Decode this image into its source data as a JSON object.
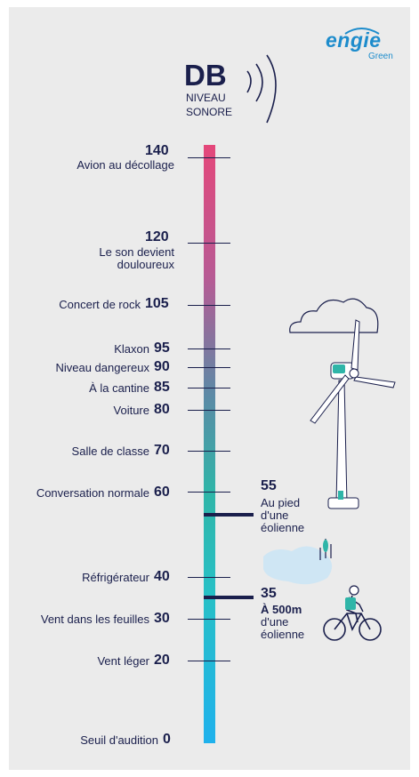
{
  "brand": {
    "name": "engie",
    "sub": "Green"
  },
  "header": {
    "unit": "DB",
    "line1": "NIVEAU",
    "line2": "SONORE"
  },
  "levels": [
    {
      "value": "140",
      "label": "Avion au décollage"
    },
    {
      "value": "120",
      "label_line1": "Le son devient",
      "label_line2": "douloureux"
    },
    {
      "value": "105",
      "label": "Concert de rock"
    },
    {
      "value": "95",
      "label": "Klaxon"
    },
    {
      "value": "90",
      "label": "Niveau dangereux"
    },
    {
      "value": "85",
      "label": "À la cantine"
    },
    {
      "value": "80",
      "label": "Voiture"
    },
    {
      "value": "70",
      "label": "Salle de classe"
    },
    {
      "value": "60",
      "label": "Conversation normale"
    },
    {
      "value": "40",
      "label": "Réfrigérateur"
    },
    {
      "value": "30",
      "label": "Vent dans les feuilles"
    },
    {
      "value": "20",
      "label": "Vent léger"
    },
    {
      "value": "0",
      "label": "Seuil d'audition"
    }
  ],
  "markers": [
    {
      "value": "55",
      "lines": [
        "Au pied",
        "d'une",
        "éolienne"
      ]
    },
    {
      "value": "35",
      "lines": [
        "À 500m",
        "d'une",
        "éolienne"
      ]
    }
  ],
  "colors": {
    "navy": "#1a1f4c",
    "top": "#e4477a",
    "bottom": "#1fb1ec",
    "brand": "#1d8ccc"
  },
  "icons": [
    "wind-turbine-icon",
    "cloud-icon",
    "cyclist-icon",
    "pond-icon",
    "sound-waves-icon"
  ]
}
